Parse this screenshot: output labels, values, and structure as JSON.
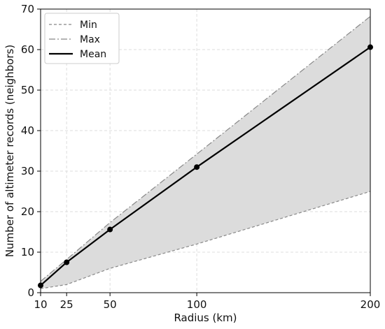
{
  "chart_data": {
    "type": "line",
    "xlabel": "Radius (km)",
    "ylabel": "Number of altimeter records (neighbors)",
    "x": [
      10,
      25,
      50,
      100,
      200
    ],
    "xticks": [
      10,
      25,
      50,
      100,
      200
    ],
    "yticks": [
      0,
      10,
      20,
      30,
      40,
      50,
      60,
      70
    ],
    "xlim": [
      10,
      200
    ],
    "ylim": [
      0,
      70
    ],
    "grid": true,
    "legend_position": "top-left",
    "shaded_range": "between Min and Max",
    "series": [
      {
        "name": "Min",
        "style": "dashed",
        "color": "#888888",
        "values": [
          1,
          2,
          6,
          12,
          25
        ]
      },
      {
        "name": "Max",
        "style": "dash-dot",
        "color": "#888888",
        "values": [
          2.8,
          8.2,
          17.3,
          34.2,
          68.2
        ]
      },
      {
        "name": "Mean",
        "style": "solid",
        "color": "#000000",
        "markers": true,
        "values": [
          1.8,
          7.5,
          15.6,
          31,
          60.6
        ]
      }
    ],
    "fill_color": "#dcdcdc"
  }
}
